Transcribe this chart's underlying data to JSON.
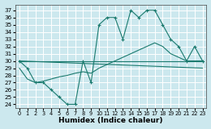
{
  "xlabel": "Humidex (Indice chaleur)",
  "bg_color": "#cce8ee",
  "grid_color": "#ffffff",
  "line_color": "#1a7a6e",
  "xlim": [
    -0.5,
    23.5
  ],
  "ylim": [
    23.5,
    37.8
  ],
  "yticks": [
    24,
    25,
    26,
    27,
    28,
    29,
    30,
    31,
    32,
    33,
    34,
    35,
    36,
    37
  ],
  "xticks": [
    0,
    1,
    2,
    3,
    4,
    5,
    6,
    7,
    8,
    9,
    10,
    11,
    12,
    13,
    14,
    15,
    16,
    17,
    18,
    19,
    20,
    21,
    22,
    23
  ],
  "line1_x": [
    0,
    1,
    2,
    3,
    4,
    5,
    6,
    7,
    8,
    9,
    10,
    11,
    12,
    13,
    14,
    15,
    16,
    17,
    18,
    19,
    20,
    21,
    22,
    23
  ],
  "line1_y": [
    30,
    29,
    27,
    27,
    26,
    25,
    24,
    24,
    30,
    27,
    35,
    36,
    36,
    33,
    37,
    36,
    37,
    37,
    35,
    33,
    32,
    30,
    32,
    30
  ],
  "line2_x": [
    0,
    23
  ],
  "line2_y": [
    30,
    30
  ],
  "line3_x": [
    0,
    23
  ],
  "line3_y": [
    30,
    29
  ],
  "line4_x": [
    0,
    1,
    2,
    3,
    4,
    5,
    6,
    7,
    8,
    9,
    10,
    11,
    12,
    13,
    14,
    15,
    16,
    17,
    18,
    19,
    20,
    21,
    22,
    23
  ],
  "line4_y": [
    29.0,
    27.5,
    27.0,
    27.2,
    27.5,
    27.8,
    28.0,
    28.3,
    28.5,
    28.3,
    29.0,
    29.5,
    30.0,
    30.5,
    31.0,
    31.5,
    32.0,
    32.5,
    32.0,
    31.0,
    30.5,
    30.0,
    30.0,
    30.0
  ]
}
